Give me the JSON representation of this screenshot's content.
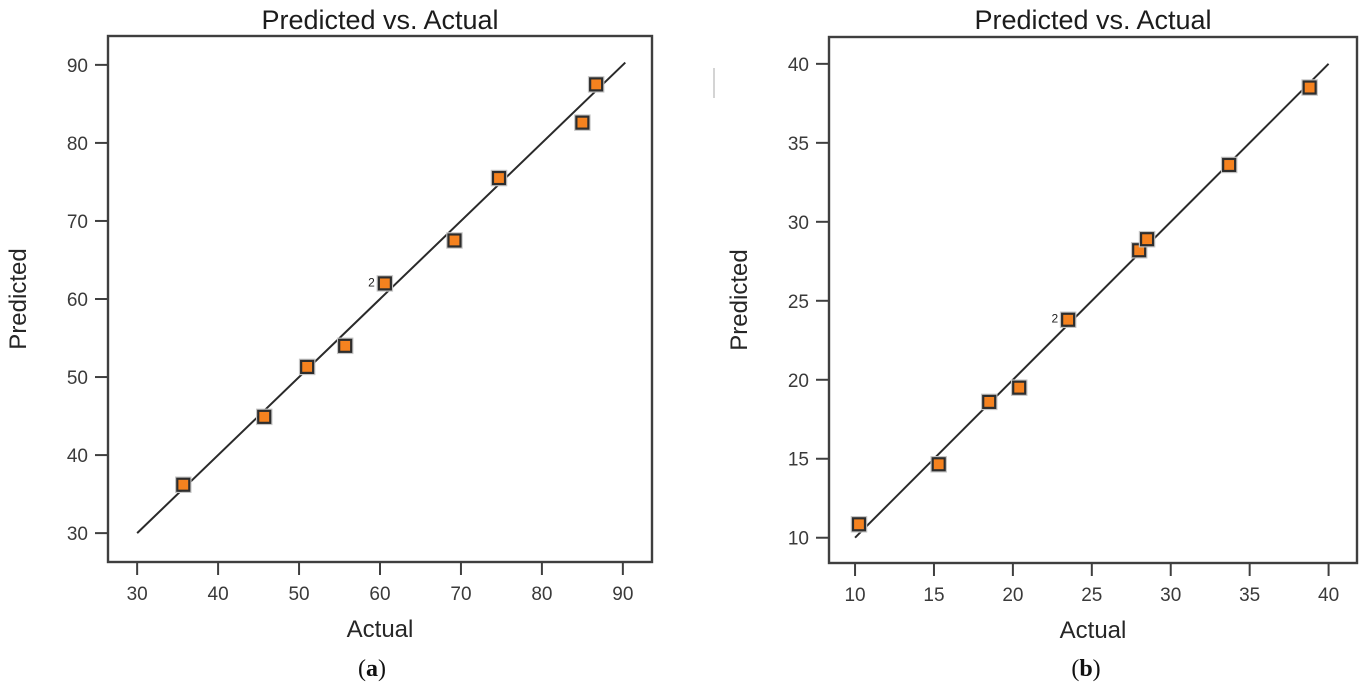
{
  "figure": {
    "panels": [
      {
        "id": "a",
        "caption": {
          "open": "(",
          "letter": "a",
          "close": ")"
        }
      },
      {
        "id": "b",
        "caption": {
          "open": "(",
          "letter": "b",
          "close": ")"
        }
      }
    ]
  },
  "colors": {
    "marker_fill": "#F5821F",
    "marker_border": "#2D2D2D",
    "marker_halo": "#C6C6C6",
    "fit_line": "#2A2A2A",
    "axis_box": "#3F3F3F",
    "title_text": "#1C1C1C",
    "axis_label_text": "#262626",
    "tick_text": "#3A3A3A",
    "artifact": "#CCCCCC"
  },
  "chart_data": [
    {
      "type": "scatter",
      "panel": "a",
      "title": "Predicted vs. Actual",
      "xlabel": "Actual",
      "ylabel": "Predicted",
      "xlim": [
        26.4,
        93.6
      ],
      "ylim": [
        26.3,
        93.7
      ],
      "xticks": [
        30,
        40,
        50,
        60,
        70,
        80,
        90
      ],
      "yticks": [
        30,
        40,
        50,
        60,
        70,
        80,
        90
      ],
      "grid": false,
      "legend": null,
      "fit_line": {
        "x1": 30,
        "y1": 30,
        "x2": 90.3,
        "y2": 90.3
      },
      "points": [
        {
          "x": 35.7,
          "y": 36.2
        },
        {
          "x": 45.7,
          "y": 44.9
        },
        {
          "x": 51.0,
          "y": 51.3
        },
        {
          "x": 55.7,
          "y": 54.0
        },
        {
          "x": 60.6,
          "y": 62.0,
          "count": 2
        },
        {
          "x": 69.2,
          "y": 67.5
        },
        {
          "x": 74.7,
          "y": 75.5
        },
        {
          "x": 85.0,
          "y": 82.6
        },
        {
          "x": 86.7,
          "y": 87.5
        }
      ]
    },
    {
      "type": "scatter",
      "panel": "b",
      "title": "Predicted vs. Actual",
      "xlabel": "Actual",
      "ylabel": "Predicted",
      "xlim": [
        8.35,
        41.8
      ],
      "ylim": [
        8.4,
        41.7
      ],
      "xticks": [
        10,
        15,
        20,
        25,
        30,
        35,
        40
      ],
      "yticks": [
        10,
        15,
        20,
        25,
        30,
        35,
        40
      ],
      "grid": false,
      "legend": null,
      "fit_line": {
        "x1": 10,
        "y1": 10,
        "x2": 40,
        "y2": 40
      },
      "points": [
        {
          "x": 10.25,
          "y": 10.85
        },
        {
          "x": 15.3,
          "y": 14.65
        },
        {
          "x": 18.5,
          "y": 18.6
        },
        {
          "x": 20.4,
          "y": 19.5
        },
        {
          "x": 23.5,
          "y": 23.8,
          "count": 2
        },
        {
          "x": 28.0,
          "y": 28.2
        },
        {
          "x": 28.5,
          "y": 28.9
        },
        {
          "x": 33.7,
          "y": 33.6
        },
        {
          "x": 38.8,
          "y": 38.5
        }
      ]
    }
  ]
}
